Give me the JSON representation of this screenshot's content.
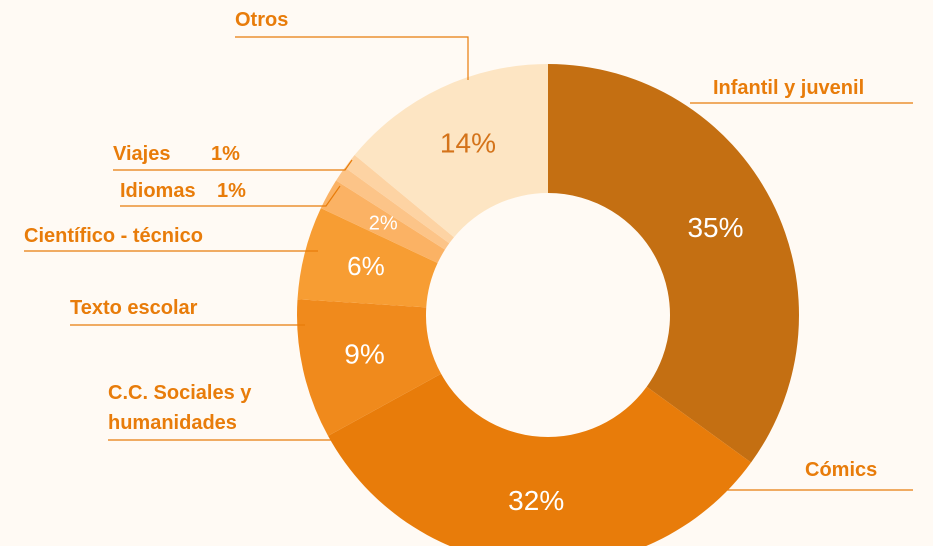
{
  "chart_data": {
    "type": "donut",
    "categories": [
      "Infantil y juvenil",
      "Cómics",
      "C.C. Sociales y humanidades",
      "Texto escolar",
      "Científico - técnico",
      "Idiomas",
      "Viajes",
      "Otros"
    ],
    "values": [
      35,
      32,
      9,
      6,
      2,
      1,
      1,
      14
    ],
    "value_labels": [
      "35%",
      "32%",
      "9%",
      "6%",
      "2%",
      "1%",
      "1%",
      "14%"
    ],
    "colors": [
      "#c46f12",
      "#e87c0a",
      "#f08a1c",
      "#f79d33",
      "#fbb264",
      "#fcc488",
      "#fdd3a3",
      "#fde5c3"
    ]
  }
}
